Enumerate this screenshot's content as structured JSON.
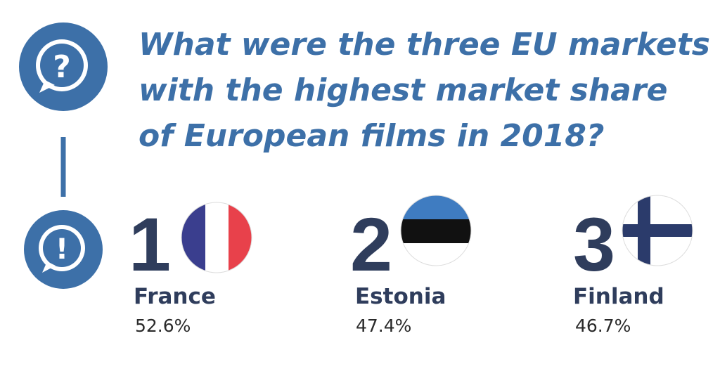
{
  "question": {
    "lines": [
      "What were the three EU markets",
      "with the highest market share",
      "of European films in 2018?"
    ]
  },
  "answers": [
    {
      "rank": 1,
      "country": "France",
      "share": "52.6%"
    },
    {
      "rank": 2,
      "country": "Estonia",
      "share": "47.4%"
    },
    {
      "rank": 3,
      "country": "Finland",
      "share": "46.7%"
    }
  ]
}
